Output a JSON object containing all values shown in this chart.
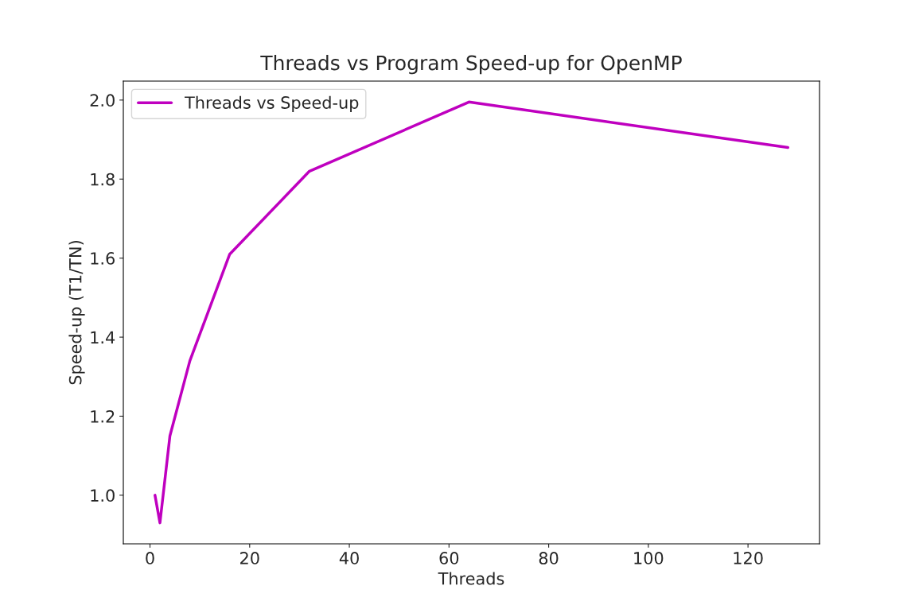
{
  "chart_data": {
    "type": "line",
    "title": "Threads vs Program Speed-up for OpenMP",
    "xlabel": "Threads",
    "ylabel": "Speed-up (T1/TN)",
    "x": [
      1,
      2,
      4,
      8,
      16,
      32,
      64,
      128
    ],
    "series": [
      {
        "name": "Threads vs Speed-up",
        "color": "#bf00bf",
        "values": [
          1.0,
          0.93,
          1.15,
          1.34,
          1.61,
          1.82,
          1.995,
          1.88
        ]
      }
    ],
    "xlim": [
      -5.35,
      134.35
    ],
    "xticks": [
      0,
      20,
      40,
      60,
      80,
      100,
      120
    ],
    "ylim": [
      0.877,
      2.048
    ],
    "yticks": [
      {
        "value": 1.0,
        "label": "1.0"
      },
      {
        "value": 1.2,
        "label": "1.2"
      },
      {
        "value": 1.4,
        "label": "1.4"
      },
      {
        "value": 1.6,
        "label": "1.6"
      },
      {
        "value": 1.8,
        "label": "1.8"
      },
      {
        "value": 2.0,
        "label": "2.0"
      }
    ],
    "legend": "top left",
    "marker": "none",
    "line_style": "solid",
    "grid": false
  }
}
